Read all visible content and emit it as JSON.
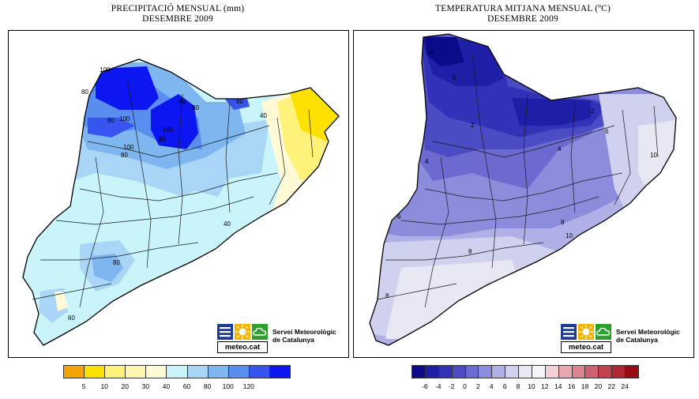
{
  "left_map": {
    "title_line1": "PRECIPITACIÓ MENSUAL (mm)",
    "title_line2": "DESEMBRE 2009",
    "contour_labels": [
      "100",
      "80",
      "60",
      "40",
      "60",
      "100",
      "80",
      "40",
      "60",
      "100",
      "100",
      "80",
      "80",
      "40",
      "60"
    ],
    "legend": {
      "colors": [
        "#f5a300",
        "#fde100",
        "#fef27a",
        "#fef6b0",
        "#fff9d6",
        "#c9f5fa",
        "#a9d5f7",
        "#7fb6f0",
        "#5a8df0",
        "#3854ee",
        "#0b16f0"
      ],
      "ticks": [
        "5",
        "10",
        "20",
        "30",
        "40",
        "60",
        "80",
        "100",
        "120"
      ]
    },
    "logo": {
      "wordmark": "meteo.cat",
      "service_line1": "Servei Meteorològic",
      "service_line2": "de Catalunya"
    }
  },
  "right_map": {
    "title_line1": "TEMPERATURA MITJANA MENSUAL (ºC)",
    "title_line2": "DESEMBRE 2009",
    "contour_labels": [
      "-4",
      "0",
      "2",
      "2",
      "4",
      "4",
      "6",
      "6",
      "8",
      "8",
      "10",
      "8",
      "10"
    ],
    "legend": {
      "colors": [
        "#0b0b8a",
        "#1e1ea6",
        "#3232b8",
        "#4b4bc4",
        "#6a6ad0",
        "#8c8cdc",
        "#b0b0e6",
        "#d0d0ef",
        "#e8e8f5",
        "#f5f5fa",
        "#f2d2d6",
        "#e7a8b0",
        "#db8590",
        "#cf6070",
        "#c24050",
        "#b22532",
        "#950d12"
      ],
      "ticks": [
        "-6",
        "-4",
        "-2",
        "0",
        "2",
        "4",
        "6",
        "8",
        "10",
        "12",
        "14",
        "16",
        "18",
        "20",
        "22",
        "24"
      ]
    },
    "logo": {
      "wordmark": "meteo.cat",
      "service_line1": "Servei Meteorològic",
      "service_line2": "de Catalunya"
    }
  }
}
